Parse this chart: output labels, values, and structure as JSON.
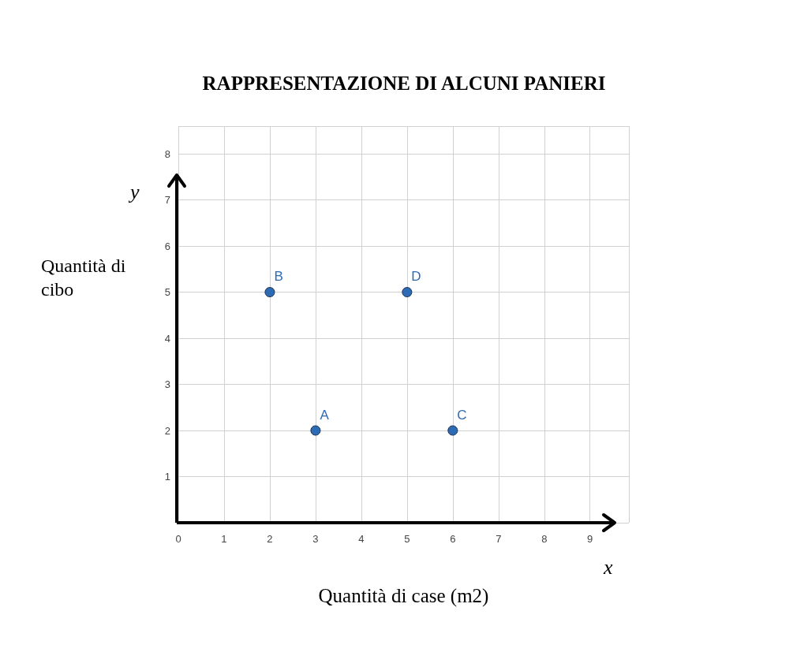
{
  "chart_data": {
    "type": "scatter",
    "title": "RAPPRESENTAZIONE DI ALCUNI PANIERI",
    "xlabel": "Quantità di case (m2)",
    "ylabel": "Quantità di cibo",
    "annotations": [
      "y",
      "x"
    ],
    "x": [
      3,
      2,
      6,
      5
    ],
    "values": [
      2,
      5,
      2,
      5
    ],
    "value_labels": [
      "A",
      "B",
      "C",
      "D"
    ],
    "color": "#2e6bb5",
    "marker": "circle",
    "xlim": [
      0,
      9.85
    ],
    "ylim": [
      0,
      8.6
    ],
    "xticks": [
      0,
      1,
      2,
      3,
      4,
      5,
      6,
      7,
      8,
      9
    ],
    "yticks": [
      1,
      2,
      3,
      4,
      5,
      6,
      7,
      8
    ],
    "grid": true
  }
}
